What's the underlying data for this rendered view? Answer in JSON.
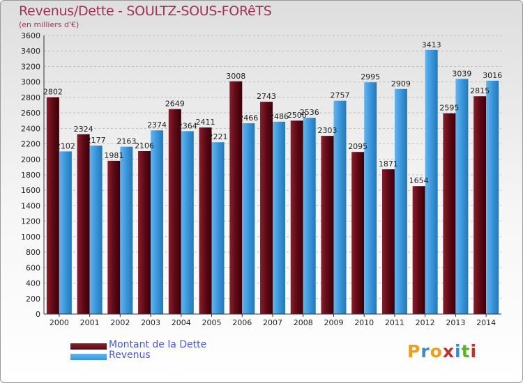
{
  "title": "Revenus/Dette - SOULTZ-SOUS-FORêTS",
  "subtitle": "(en milliers d'€)",
  "colors": {
    "dette": "#5c0a16",
    "revenus": "#3a96da",
    "title": "#a0305a",
    "legend_text": "#4a57d8"
  },
  "chart_data": {
    "type": "bar",
    "title": "Revenus/Dette - SOULTZ-SOUS-FORêTS",
    "ylabel": "(en milliers d'€)",
    "xlabel": "",
    "categories": [
      "2000",
      "2001",
      "2002",
      "2003",
      "2004",
      "2005",
      "2006",
      "2007",
      "2008",
      "2009",
      "2010",
      "2011",
      "2012",
      "2013",
      "2014"
    ],
    "series": [
      {
        "name": "Montant de la Dette",
        "values": [
          2802,
          2324,
          1981,
          2106,
          2649,
          2411,
          3008,
          2743,
          2500,
          2303,
          2095,
          1871,
          1654,
          2595,
          2815
        ]
      },
      {
        "name": "Revenus",
        "values": [
          2102,
          2177,
          2163,
          2374,
          2364,
          2221,
          2466,
          2486,
          2536,
          2757,
          2995,
          2909,
          3413,
          3039,
          3016
        ]
      }
    ],
    "y_ticks": [
      "0",
      "200",
      "400",
      "600",
      "800",
      "1000",
      "1200",
      "1400",
      "1600",
      "1800",
      "2000",
      "2200",
      "2400",
      "2600",
      "2800",
      "3000",
      "3200",
      "3400",
      "3600"
    ],
    "ylim": [
      0,
      3600
    ],
    "grid": true,
    "legend_position": "bottom-left"
  },
  "legend": [
    {
      "label": "Montant de la Dette"
    },
    {
      "label": "Revenus"
    }
  ],
  "logo": {
    "letters": [
      "P",
      "r",
      "o",
      "x",
      "i",
      "t",
      "i"
    ],
    "colors": [
      "#e8a020",
      "#3a8ad0",
      "#e8a020",
      "#c03030",
      "#3a8ad0",
      "#60b030",
      "#c03030"
    ]
  }
}
